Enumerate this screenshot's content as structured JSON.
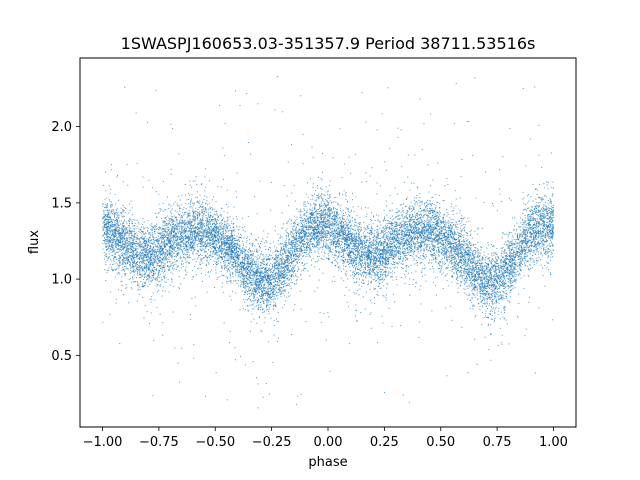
{
  "chart_data": {
    "type": "scatter",
    "title": "1SWASPJ160653.03-351357.9 Period 38711.53516s",
    "xlabel": "phase",
    "ylabel": "flux",
    "xlim": [
      -1.1,
      1.1
    ],
    "ylim": [
      0.03,
      2.45
    ],
    "xticks": [
      -1.0,
      -0.75,
      -0.5,
      -0.25,
      0.0,
      0.25,
      0.5,
      0.75,
      1.0
    ],
    "xtick_labels": [
      "−1.00",
      "−0.75",
      "−0.50",
      "−0.25",
      "0.00",
      "0.25",
      "0.50",
      "0.75",
      "1.00"
    ],
    "yticks": [
      0.5,
      1.0,
      1.5,
      2.0
    ],
    "ytick_labels": [
      "0.5",
      "1.0",
      "1.5",
      "2.0"
    ],
    "grid": false,
    "legend": "none",
    "point_color": "#1f77b4",
    "series": [
      {
        "trend": {
          "x": [
            -1.0,
            -0.95,
            -0.9,
            -0.85,
            -0.8,
            -0.75,
            -0.7,
            -0.65,
            -0.6,
            -0.55,
            -0.5,
            -0.45,
            -0.4,
            -0.35,
            -0.3,
            -0.25,
            -0.2,
            -0.15,
            -0.1,
            -0.05,
            0.0,
            0.05,
            0.1,
            0.15,
            0.2,
            0.25,
            0.3,
            0.35,
            0.4,
            0.45,
            0.5,
            0.55,
            0.6,
            0.65,
            0.7,
            0.75,
            0.8,
            0.85,
            0.9,
            0.95,
            1.0
          ],
          "y": [
            1.35,
            1.3,
            1.23,
            1.17,
            1.15,
            1.18,
            1.24,
            1.29,
            1.31,
            1.31,
            1.28,
            1.22,
            1.14,
            1.04,
            0.98,
            0.98,
            1.08,
            1.2,
            1.3,
            1.35,
            1.35,
            1.3,
            1.23,
            1.17,
            1.15,
            1.18,
            1.24,
            1.29,
            1.31,
            1.31,
            1.28,
            1.22,
            1.14,
            1.04,
            0.98,
            0.98,
            1.08,
            1.2,
            1.3,
            1.35,
            1.35
          ]
        },
        "n_points": 14000,
        "core_spread": 0.1,
        "outlier_range": [
          0.15,
          2.35
        ]
      }
    ]
  }
}
